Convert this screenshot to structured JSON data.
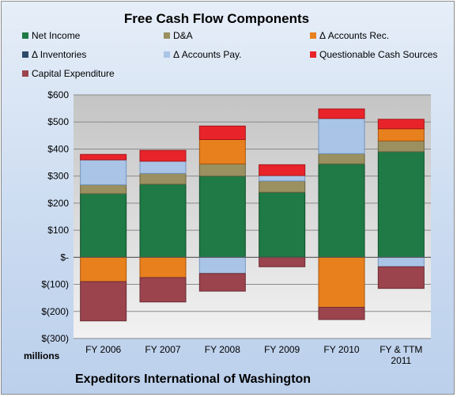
{
  "chart_data": {
    "type": "bar",
    "stacked": true,
    "title": "Free Cash Flow Components",
    "units_label": "millions",
    "company": "Expeditors International of Washington",
    "categories": [
      "FY 2006",
      "FY 2007",
      "FY 2008",
      "FY 2009",
      "FY 2010",
      "FY & TTM 2011"
    ],
    "ylim": [
      -300,
      600
    ],
    "yticks": [
      600,
      500,
      400,
      300,
      200,
      100,
      0,
      -100,
      -200,
      -300
    ],
    "ytick_labels": [
      "$600",
      "$500",
      "$400",
      "$300",
      "$200",
      "$100",
      "$-",
      "$(100)",
      "$(200)",
      "$(300)"
    ],
    "grid": true,
    "legend_position": "top",
    "series": [
      {
        "name": "Net Income",
        "color": "#1f7a45",
        "values": [
          235,
          270,
          300,
          240,
          345,
          390
        ]
      },
      {
        "name": "D&A",
        "color": "#9a9060",
        "values": [
          33,
          40,
          45,
          42,
          38,
          40
        ]
      },
      {
        "name": "Δ Accounts Rec.",
        "color": "#e8801e",
        "values": [
          -90,
          -75,
          90,
          0,
          -185,
          45
        ]
      },
      {
        "name": "Δ Inventories",
        "color": "#2e4a6a",
        "values": [
          0,
          0,
          0,
          0,
          0,
          0
        ]
      },
      {
        "name": "Δ Accounts Pay.",
        "color": "#a9c4e6",
        "values": [
          92,
          45,
          -60,
          20,
          130,
          -35
        ]
      },
      {
        "name": "Questionable Cash Sources",
        "color": "#e8242a",
        "values": [
          20,
          40,
          50,
          40,
          35,
          35
        ]
      },
      {
        "name": "Capital Expenditure",
        "color": "#9b444e",
        "values": [
          -145,
          -90,
          -65,
          -35,
          -45,
          -80
        ]
      }
    ]
  }
}
